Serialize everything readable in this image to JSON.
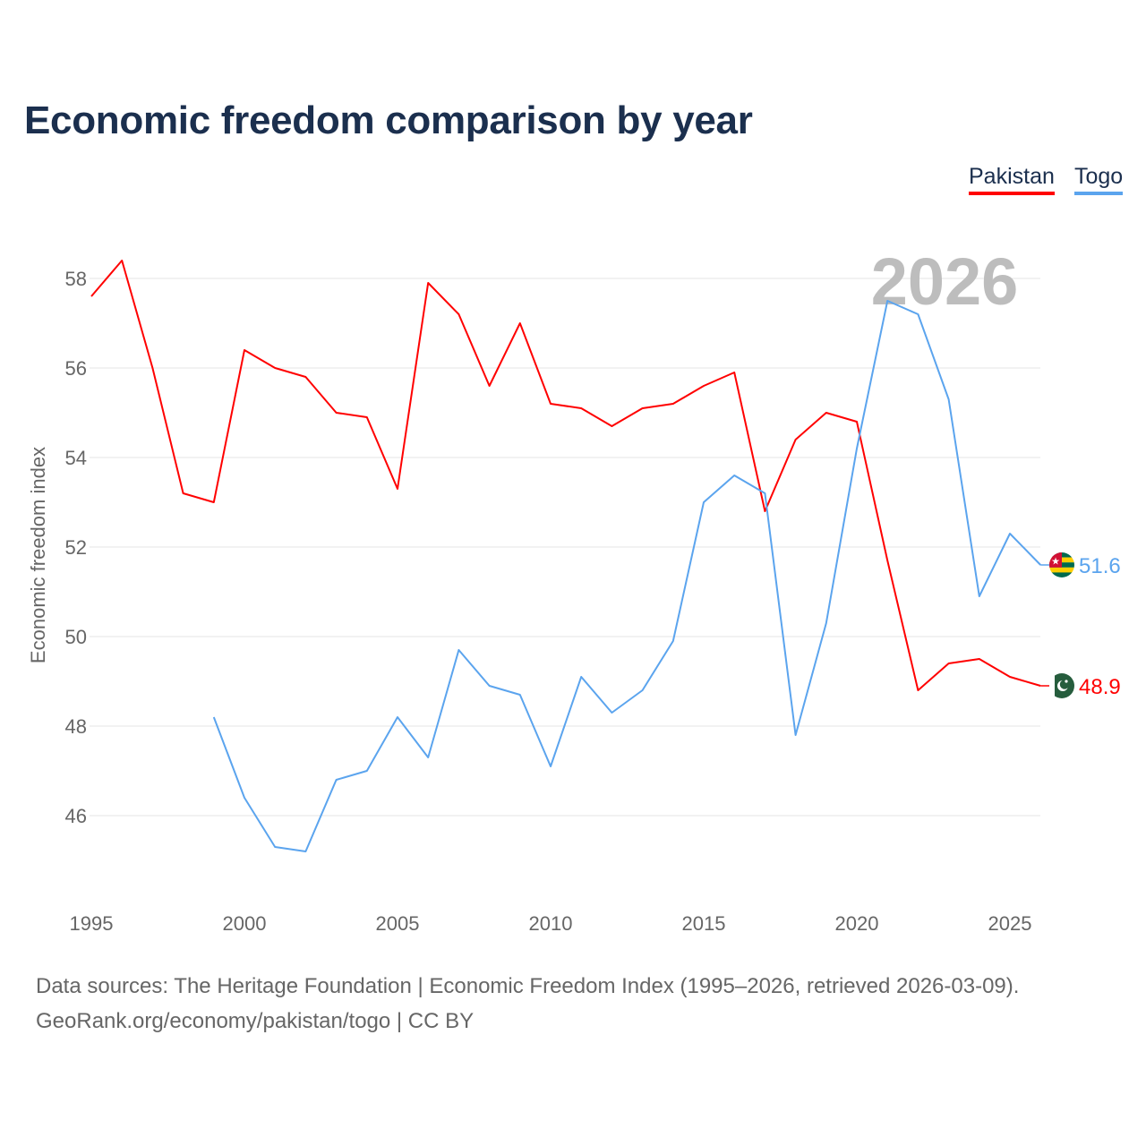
{
  "chart_data": {
    "type": "line",
    "title": "Economic freedom comparison by year",
    "xlabel": "",
    "ylabel": "Economic freedom index",
    "xlim": [
      1995,
      2026
    ],
    "ylim": [
      44,
      59
    ],
    "xticks": [
      1995,
      2000,
      2005,
      2010,
      2015,
      2020,
      2025
    ],
    "yticks": [
      46,
      48,
      50,
      52,
      54,
      56,
      58
    ],
    "grid": true,
    "legend_position": "top-right",
    "current_year_label": "2026",
    "series": [
      {
        "name": "Pakistan",
        "color": "#ff0000",
        "end_label": "48.9",
        "flag": "pakistan-flag",
        "x": [
          1995,
          1996,
          1997,
          1998,
          1999,
          2000,
          2001,
          2002,
          2003,
          2004,
          2005,
          2006,
          2007,
          2008,
          2009,
          2010,
          2011,
          2012,
          2013,
          2014,
          2015,
          2016,
          2017,
          2018,
          2019,
          2020,
          2021,
          2022,
          2023,
          2024,
          2025,
          2026
        ],
        "values": [
          57.6,
          58.4,
          56.0,
          53.2,
          53.0,
          56.4,
          56.0,
          55.8,
          55.0,
          54.9,
          53.3,
          57.9,
          57.2,
          55.6,
          57.0,
          55.2,
          55.1,
          54.7,
          55.1,
          55.2,
          55.6,
          55.9,
          52.8,
          54.4,
          55.0,
          54.8,
          51.7,
          48.8,
          49.4,
          49.5,
          49.1,
          48.9
        ]
      },
      {
        "name": "Togo",
        "color": "#5ba4ee",
        "end_label": "51.6",
        "flag": "togo-flag",
        "x": [
          1999,
          2000,
          2001,
          2002,
          2003,
          2004,
          2005,
          2006,
          2007,
          2008,
          2009,
          2010,
          2011,
          2012,
          2013,
          2014,
          2015,
          2016,
          2017,
          2018,
          2019,
          2020,
          2021,
          2022,
          2023,
          2024,
          2025,
          2026
        ],
        "values": [
          48.2,
          46.4,
          45.3,
          45.2,
          46.8,
          47.0,
          48.2,
          47.3,
          49.7,
          48.9,
          48.7,
          47.1,
          49.1,
          48.3,
          48.8,
          49.9,
          53.0,
          53.6,
          53.2,
          47.8,
          50.3,
          54.2,
          57.5,
          57.2,
          55.3,
          50.9,
          52.3,
          51.6
        ]
      }
    ]
  },
  "footer": {
    "line1": "Data sources: The Heritage Foundation | Economic Freedom Index (1995–2026, retrieved 2026-03-09).",
    "line2": "GeoRank.org/economy/pakistan/togo | CC BY"
  }
}
